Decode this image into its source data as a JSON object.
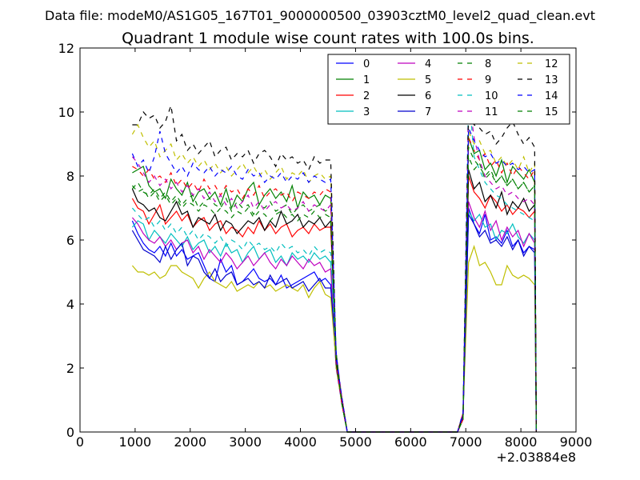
{
  "header": {
    "data_file": "Data file: modeM0/AS1G05_167T01_9000000500_03903cztM0_level2_quad_clean.evt"
  },
  "chart_data": {
    "type": "line",
    "title": "Quadrant 1 module wise count rates with 100.0s bins.",
    "xlabel": "",
    "ylabel": "",
    "x_offset_label": "+2.03884e8",
    "xlim": [
      0,
      9000
    ],
    "ylim": [
      0,
      12
    ],
    "x_ticks": [
      "0",
      "1000",
      "2000",
      "3000",
      "4000",
      "5000",
      "6000",
      "7000",
      "8000",
      "9000"
    ],
    "y_ticks": [
      "0",
      "2",
      "4",
      "6",
      "8",
      "10",
      "12"
    ],
    "grid": false,
    "legend": {
      "placement": "top-right",
      "columns": 4
    },
    "x": [
      950,
      1050,
      1150,
      1250,
      1350,
      1450,
      1550,
      1650,
      1750,
      1850,
      1950,
      2050,
      2150,
      2250,
      2350,
      2450,
      2550,
      2650,
      2750,
      2850,
      2950,
      3050,
      3150,
      3250,
      3350,
      3450,
      3550,
      3650,
      3750,
      3850,
      3950,
      4050,
      4150,
      4250,
      4350,
      4450,
      4550,
      4650,
      4750,
      4850,
      4950,
      5050,
      5150,
      5250,
      5350,
      5450,
      5550,
      5650,
      5750,
      5850,
      5950,
      6050,
      6150,
      6250,
      6350,
      6450,
      6550,
      6650,
      6750,
      6850,
      6950,
      7050,
      7150,
      7250,
      7350,
      7450,
      7550,
      7650,
      7750,
      7850,
      7950,
      8050,
      8150,
      8250
    ],
    "series": [
      {
        "name": "0",
        "color": "#0000ff",
        "dash": "solid",
        "seg1": [
          6.6,
          6.2,
          5.9,
          5.7,
          5.6,
          5.8,
          5.5,
          5.9,
          5.5,
          5.7,
          5.4,
          5.5,
          5.6,
          5.2,
          4.8,
          4.7,
          5.4,
          5.0,
          5.2,
          4.6,
          4.7,
          4.9,
          5.1,
          4.8,
          4.7,
          4.8,
          4.6,
          4.9,
          4.5,
          4.6,
          4.7,
          4.8,
          4.9,
          5.0,
          4.7,
          4.8,
          4.6
        ],
        "seg2": [
          7.0,
          6.5,
          6.2,
          6.8,
          6.0,
          6.1,
          5.9,
          6.3,
          5.8,
          6.0,
          5.6,
          5.8,
          5.7,
          5.5,
          5.4,
          5.2
        ]
      },
      {
        "name": "1",
        "color": "#008000",
        "dash": "solid",
        "seg1": [
          8.1,
          8.2,
          8.3,
          7.7,
          7.5,
          7.6,
          7.3,
          7.9,
          7.6,
          7.4,
          7.8,
          7.2,
          7.5,
          7.6,
          7.3,
          7.5,
          7.1,
          7.6,
          7.0,
          7.4,
          7.2,
          7.6,
          7.8,
          7.1,
          7.4,
          7.6,
          7.3,
          7.5,
          7.2,
          7.7,
          7.0,
          7.5,
          7.3,
          7.4,
          7.1,
          7.4,
          7.3
        ],
        "seg2": [
          9.2,
          8.7,
          8.8,
          8.2,
          8.4,
          8.0,
          8.5,
          7.8,
          8.3,
          8.1,
          7.9,
          8.2,
          7.8,
          8.0,
          7.9,
          7.7
        ]
      },
      {
        "name": "2",
        "color": "#ff0000",
        "dash": "solid",
        "seg1": [
          7.3,
          7.0,
          6.9,
          6.5,
          6.8,
          7.1,
          6.5,
          6.7,
          6.9,
          6.6,
          6.8,
          6.4,
          6.6,
          6.7,
          6.3,
          6.5,
          6.6,
          6.2,
          6.4,
          6.3,
          6.1,
          6.4,
          6.2,
          6.6,
          6.3,
          6.5,
          6.2,
          6.4,
          6.5,
          6.1,
          6.3,
          6.4,
          6.2,
          6.5,
          6.3,
          6.4,
          6.4
        ],
        "seg2": [
          8.0,
          7.5,
          7.3,
          7.0,
          7.4,
          7.2,
          6.9,
          7.1,
          6.8,
          7.0,
          6.9,
          6.7,
          6.9,
          6.8,
          6.7,
          6.4
        ]
      },
      {
        "name": "3",
        "color": "#00bfbf",
        "dash": "solid",
        "seg1": [
          6.4,
          6.6,
          6.5,
          6.0,
          6.3,
          6.1,
          5.9,
          6.2,
          6.0,
          5.8,
          6.1,
          5.7,
          5.9,
          6.0,
          5.6,
          5.8,
          5.5,
          5.9,
          5.6,
          5.7,
          5.3,
          5.6,
          5.8,
          5.4,
          5.6,
          5.7,
          5.3,
          5.5,
          5.2,
          5.6,
          5.4,
          5.5,
          5.3,
          5.6,
          5.4,
          5.5,
          5.3
        ],
        "seg2": [
          6.9,
          6.6,
          6.8,
          6.4,
          6.5,
          6.0,
          6.3,
          6.2,
          6.5,
          6.1,
          5.9,
          6.2,
          6.0,
          5.8,
          5.9,
          5.6
        ]
      },
      {
        "name": "4",
        "color": "#bf00bf",
        "dash": "solid",
        "seg1": [
          6.7,
          6.5,
          6.2,
          6.0,
          5.9,
          6.1,
          5.8,
          6.0,
          5.7,
          5.9,
          6.0,
          5.6,
          5.8,
          5.4,
          5.7,
          5.5,
          5.3,
          5.6,
          5.4,
          5.1,
          5.3,
          5.5,
          5.2,
          5.4,
          5.6,
          5.3,
          5.1,
          5.4,
          5.2,
          5.5,
          5.3,
          5.1,
          5.4,
          5.2,
          5.3,
          5.0,
          5.1
        ],
        "seg2": [
          7.2,
          6.7,
          6.4,
          6.9,
          6.3,
          6.6,
          6.0,
          6.4,
          6.1,
          6.3,
          5.8,
          6.2,
          5.9,
          6.1,
          5.8,
          5.5
        ]
      },
      {
        "name": "5",
        "color": "#bfbf00",
        "dash": "solid",
        "seg1": [
          5.2,
          5.0,
          5.0,
          4.9,
          5.0,
          4.8,
          4.9,
          5.2,
          5.2,
          5.0,
          4.9,
          4.8,
          4.5,
          4.8,
          5.0,
          4.7,
          4.6,
          4.5,
          4.7,
          4.4,
          4.5,
          4.6,
          4.5,
          4.7,
          4.5,
          4.6,
          4.4,
          4.5,
          4.6,
          4.5,
          4.4,
          4.6,
          4.2,
          4.5,
          4.7,
          4.3,
          4.2
        ],
        "seg2": [
          5.3,
          5.8,
          5.2,
          5.3,
          5.0,
          4.6,
          4.6,
          5.2,
          4.9,
          4.8,
          4.9,
          4.8,
          4.6,
          4.8,
          4.7,
          4.3
        ]
      },
      {
        "name": "6",
        "color": "#000000",
        "dash": "solid",
        "seg1": [
          7.6,
          7.2,
          7.1,
          6.9,
          7.0,
          6.7,
          6.6,
          6.9,
          7.2,
          6.8,
          6.9,
          6.4,
          6.7,
          6.6,
          6.5,
          6.8,
          6.3,
          6.6,
          6.5,
          6.2,
          6.4,
          6.6,
          6.5,
          6.7,
          6.3,
          6.6,
          6.4,
          6.9,
          6.5,
          6.6,
          6.8,
          6.4,
          6.6,
          6.5,
          6.7,
          6.4,
          6.6
        ],
        "seg2": [
          8.2,
          7.6,
          7.8,
          7.2,
          7.4,
          7.0,
          7.5,
          6.8,
          7.2,
          7.0,
          7.3,
          6.9,
          7.1,
          6.8,
          6.9,
          6.6
        ]
      },
      {
        "name": "7",
        "color": "#0000cd",
        "dash": "solid",
        "seg1": [
          6.3,
          6.0,
          5.7,
          5.6,
          5.5,
          5.3,
          5.8,
          5.4,
          5.7,
          5.9,
          5.2,
          5.5,
          5.4,
          5.0,
          4.8,
          5.1,
          4.7,
          4.9,
          5.0,
          4.6,
          4.7,
          4.8,
          4.6,
          4.7,
          4.5,
          4.9,
          4.6,
          4.7,
          4.8,
          4.5,
          4.6,
          4.7,
          4.4,
          4.6,
          4.8,
          4.5,
          4.5
        ],
        "seg2": [
          6.8,
          6.5,
          6.1,
          6.3,
          5.9,
          6.0,
          5.8,
          6.1,
          5.7,
          6.0,
          5.5,
          5.8,
          5.6,
          5.4,
          5.5,
          5.1
        ]
      },
      {
        "name": "8",
        "color": "#008000",
        "dash": "dashed",
        "seg1": [
          7.6,
          7.8,
          7.5,
          7.4,
          7.6,
          7.3,
          7.5,
          7.2,
          7.4,
          7.1,
          7.3,
          7.4,
          7.0,
          7.2,
          7.3,
          7.1,
          7.0,
          7.3,
          6.9,
          7.2,
          7.0,
          7.1,
          6.8,
          7.1,
          7.0,
          7.2,
          6.9,
          7.0,
          7.1,
          6.8,
          7.0,
          7.1,
          6.9,
          7.0,
          7.1,
          6.9,
          7.0
        ],
        "seg2": [
          8.6,
          8.2,
          8.4,
          7.9,
          8.1,
          7.8,
          8.0,
          7.7,
          7.9,
          7.6,
          7.8,
          7.5,
          7.7,
          7.4,
          7.6,
          7.3
        ]
      },
      {
        "name": "9",
        "color": "#ff0000",
        "dash": "dashed",
        "seg1": [
          8.3,
          8.2,
          8.0,
          8.2,
          7.9,
          8.0,
          7.8,
          8.1,
          7.7,
          7.9,
          7.6,
          7.8,
          7.5,
          7.9,
          7.6,
          7.7,
          7.4,
          7.7,
          7.5,
          7.6,
          7.3,
          7.6,
          7.4,
          7.7,
          7.3,
          7.5,
          7.6,
          7.4,
          7.5,
          7.2,
          7.5,
          7.4,
          7.3,
          7.5,
          7.4,
          7.6,
          7.5
        ],
        "seg2": [
          9.2,
          8.8,
          8.5,
          8.7,
          8.3,
          8.5,
          8.1,
          8.4,
          8.0,
          8.3,
          8.1,
          7.9,
          8.2,
          7.8,
          8.0,
          7.7
        ]
      },
      {
        "name": "10",
        "color": "#00bfbf",
        "dash": "dashed",
        "seg1": [
          7.0,
          6.8,
          6.6,
          6.7,
          6.4,
          6.6,
          6.3,
          6.5,
          6.2,
          6.4,
          6.1,
          6.3,
          6.0,
          6.2,
          6.1,
          5.9,
          6.1,
          5.8,
          6.0,
          5.9,
          5.7,
          6.0,
          5.8,
          5.9,
          5.7,
          5.8,
          5.6,
          5.9,
          5.7,
          5.8,
          5.6,
          5.7,
          5.5,
          5.8,
          5.6,
          5.7,
          5.6
        ],
        "seg2": [
          10.7,
          8.6,
          8.2,
          7.8,
          7.6,
          7.4,
          7.3,
          7.1,
          7.0,
          6.9,
          6.8,
          6.7,
          6.6,
          6.6,
          6.5,
          6.4
        ]
      },
      {
        "name": "11",
        "color": "#bf00bf",
        "dash": "dashed",
        "seg1": [
          8.6,
          8.4,
          8.1,
          7.8,
          8.0,
          7.7,
          7.9,
          7.6,
          7.8,
          7.5,
          7.7,
          7.4,
          7.6,
          7.3,
          7.5,
          7.2,
          7.4,
          7.1,
          7.3,
          7.0,
          7.2,
          7.4,
          7.0,
          7.2,
          6.9,
          7.1,
          7.2,
          7.0,
          7.1,
          6.9,
          7.0,
          7.2,
          6.9,
          7.1,
          7.0,
          6.9,
          7.1
        ],
        "seg2": [
          10.5,
          9.2,
          8.5,
          8.0,
          7.8,
          7.6,
          7.7,
          7.4,
          7.5,
          7.3,
          7.2,
          7.3,
          7.1,
          7.2,
          7.0,
          6.9
        ]
      },
      {
        "name": "12",
        "color": "#bfbf00",
        "dash": "dashed",
        "seg1": [
          9.3,
          9.6,
          9.2,
          8.9,
          9.1,
          8.6,
          8.8,
          9.0,
          8.5,
          8.7,
          8.4,
          8.6,
          8.3,
          8.5,
          8.2,
          8.4,
          8.1,
          8.3,
          8.0,
          8.2,
          8.4,
          8.1,
          8.3,
          8.0,
          8.2,
          7.9,
          8.1,
          8.3,
          7.9,
          8.1,
          8.0,
          8.2,
          7.8,
          8.0,
          8.1,
          7.9,
          8.0
        ],
        "seg2": [
          9.4,
          9.0,
          9.1,
          8.7,
          8.8,
          8.4,
          8.6,
          8.3,
          8.5,
          8.2,
          8.6,
          8.1,
          8.4,
          8.0,
          8.2,
          8.3
        ]
      },
      {
        "name": "13",
        "color": "#000000",
        "dash": "dashed",
        "seg1": [
          9.6,
          9.6,
          10.0,
          9.8,
          9.9,
          9.5,
          9.7,
          10.2,
          9.1,
          9.3,
          8.8,
          9.0,
          8.7,
          8.9,
          9.1,
          8.6,
          8.8,
          8.9,
          8.5,
          8.7,
          8.6,
          8.8,
          8.4,
          8.7,
          8.8,
          8.6,
          8.3,
          8.7,
          8.5,
          8.6,
          8.4,
          8.5,
          8.2,
          8.6,
          8.4,
          8.5,
          8.5
        ],
        "seg2": [
          10.0,
          9.6,
          9.5,
          9.3,
          9.4,
          9.0,
          9.2,
          9.5,
          9.7,
          9.3,
          9.0,
          9.2,
          8.9,
          9.1,
          8.8,
          8.9
        ]
      },
      {
        "name": "14",
        "color": "#0000ff",
        "dash": "dashed",
        "seg1": [
          8.7,
          8.3,
          8.5,
          8.1,
          8.6,
          9.4,
          8.7,
          8.4,
          8.1,
          8.3,
          8.0,
          8.4,
          8.2,
          8.1,
          8.3,
          8.0,
          8.2,
          8.1,
          8.3,
          8.0,
          7.9,
          8.2,
          8.0,
          8.1,
          7.8,
          8.0,
          7.9,
          8.1,
          7.8,
          8.0,
          7.9,
          8.1,
          7.8,
          8.0,
          7.9,
          7.8,
          7.9
        ],
        "seg2": [
          9.5,
          9.1,
          8.8,
          8.6,
          8.7,
          8.4,
          8.5,
          8.3,
          8.4,
          8.2,
          8.3,
          8.1,
          8.2,
          8.0,
          8.1,
          7.9
        ]
      },
      {
        "name": "15",
        "color": "#008000",
        "dash": "dashed",
        "seg1": [
          7.7,
          7.5,
          7.6,
          7.3,
          7.5,
          7.2,
          7.4,
          7.1,
          7.3,
          7.0,
          7.2,
          7.1,
          6.9,
          7.1,
          7.0,
          6.8,
          7.0,
          6.9,
          6.7,
          6.9,
          6.8,
          7.0,
          6.7,
          6.9,
          6.8,
          6.6,
          6.8,
          6.9,
          6.7,
          6.8,
          6.6,
          6.8,
          6.7,
          6.9,
          6.7,
          6.8,
          6.7
        ],
        "seg2": [
          8.9,
          8.5,
          8.3,
          8.0,
          8.2,
          7.8,
          8.0,
          7.7,
          7.9,
          7.6,
          7.8,
          7.5,
          7.7,
          7.4,
          7.6,
          7.8
        ]
      }
    ]
  }
}
